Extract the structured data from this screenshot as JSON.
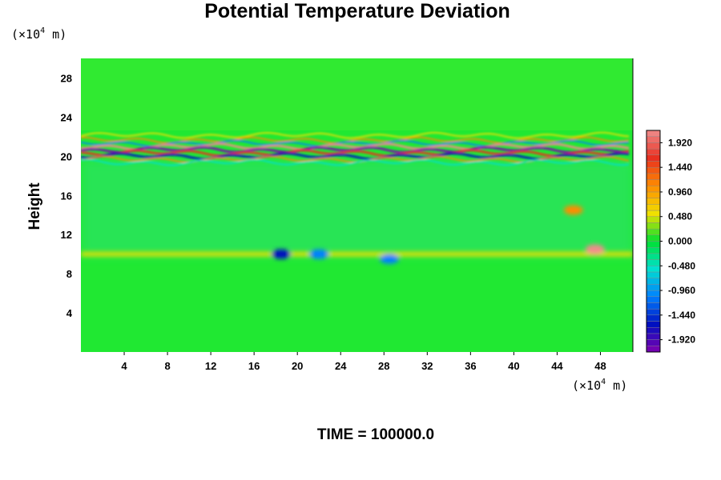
{
  "chart_data": {
    "type": "heatmap",
    "title": "Potential Temperature Deviation",
    "ylabel": "Height",
    "y_unit": {
      "prefix": "(×10",
      "exp": "4",
      "suffix": " m)"
    },
    "x_unit": {
      "prefix": "(×10",
      "exp": "4",
      "suffix": " m)"
    },
    "xlim": [
      0,
      51
    ],
    "ylim": [
      0,
      30
    ],
    "x_ticks": [
      4,
      8,
      12,
      16,
      20,
      24,
      28,
      32,
      36,
      40,
      44,
      48
    ],
    "y_ticks": [
      4,
      8,
      12,
      16,
      20,
      24,
      28
    ],
    "colorbar": {
      "levels": [
        "1.920",
        "1.440",
        "0.960",
        "0.480",
        "0.000",
        "-0.480",
        "-0.960",
        "-1.440",
        "-1.920"
      ],
      "range": [
        -2.16,
        2.16
      ],
      "colors_top_to_bottom": [
        "#f08c8c",
        "#e83020",
        "#ff8c00",
        "#f0e000",
        "#00e030",
        "#00e0d0",
        "#0080ff",
        "#0010c0",
        "#8000b0"
      ]
    },
    "features": [
      {
        "kind": "band",
        "y": 20.5,
        "value": "mixed",
        "note": "strong alternating red/blue layers"
      },
      {
        "kind": "band",
        "y": 10,
        "value": 0.4
      },
      {
        "kind": "blob",
        "x": 45.5,
        "y": 14.5,
        "value": 1.2
      },
      {
        "kind": "blob",
        "x": 47.5,
        "y": 10.5,
        "value": 1.9
      },
      {
        "kind": "blob",
        "x": 18.5,
        "y": 10,
        "value": -1.4
      },
      {
        "kind": "blob",
        "x": 22,
        "y": 10,
        "value": -1.2
      },
      {
        "kind": "blob",
        "x": 28.5,
        "y": 9.5,
        "value": -1.3
      }
    ]
  },
  "footer": {
    "time_label": "TIME = 100000.0"
  }
}
